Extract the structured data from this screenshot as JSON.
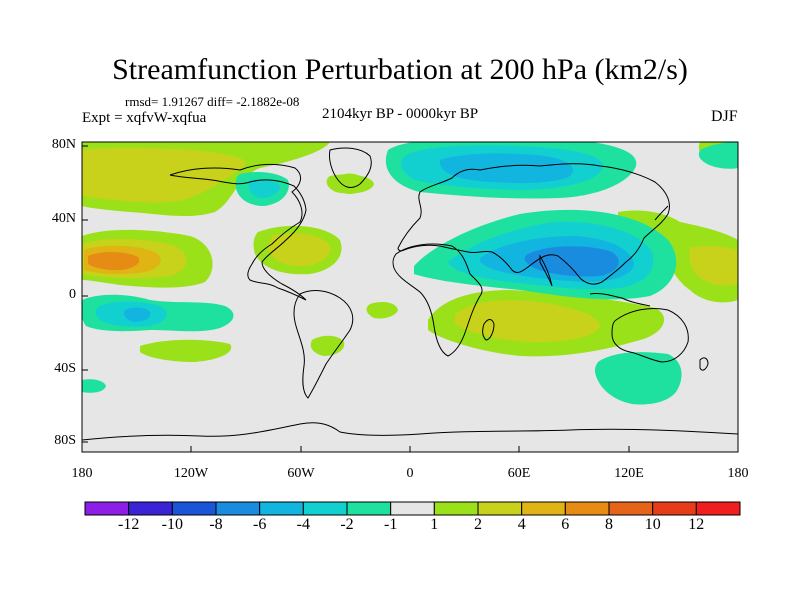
{
  "title": "Streamfunction Perturbation at 200 hPa (km2/s)",
  "stats": "rmsd= 1.91267 diff= -2.1882e-08",
  "experiment": "Expt = xqfvW-xqfua",
  "period": "2104kyr BP - 0000kyr BP",
  "season": "DJF",
  "lat_labels": [
    "80N",
    "40N",
    "0",
    "40S",
    "80S"
  ],
  "lon_labels": [
    "180",
    "120W",
    "60W",
    "0",
    "60E",
    "120E",
    "180"
  ],
  "colorbar": {
    "labels": [
      "-12",
      "-10",
      "-8",
      "-6",
      "-4",
      "-2",
      "-1",
      "1",
      "2",
      "4",
      "6",
      "8",
      "10",
      "12"
    ],
    "colors": [
      "#8c1ee6",
      "#3a22d6",
      "#1a55d8",
      "#1a8ce0",
      "#12b4e0",
      "#12d0d0",
      "#1ee1a0",
      "#e6e6e6",
      "#9be11a",
      "#c8d21a",
      "#e0b414",
      "#e68c14",
      "#e6641a",
      "#e63c1a",
      "#f01e1e"
    ]
  },
  "map": {
    "background": "#e6e6e6",
    "pos1": "#9be11a",
    "pos2": "#c8d21a",
    "pos3": "#e0b414",
    "pos4": "#e68c14",
    "neg1": "#1ee1a0",
    "neg2": "#12d0d0",
    "neg3": "#12b4e0",
    "neg4": "#1a8ce0"
  }
}
